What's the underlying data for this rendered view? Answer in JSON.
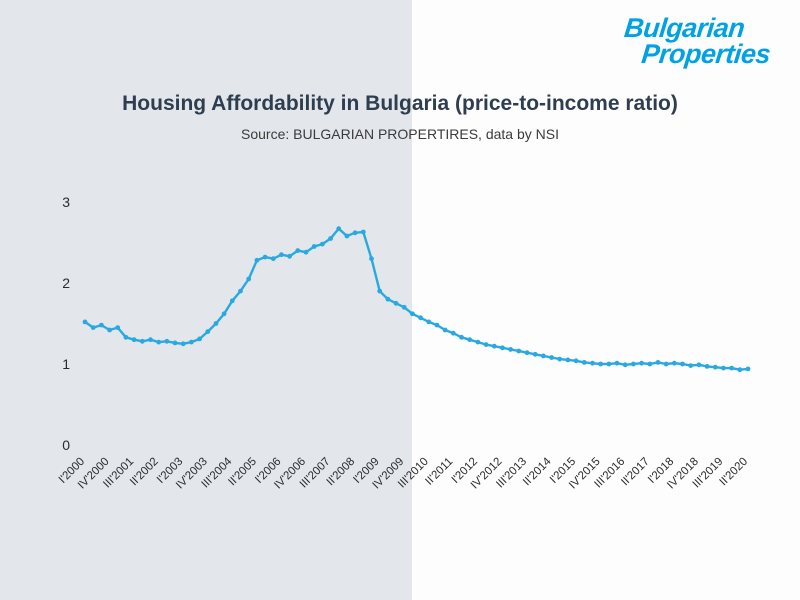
{
  "page": {
    "bg_left_color": "#e3e6ea",
    "bg_right_color": "#fdfdfe",
    "split_x": 412
  },
  "logo": {
    "line1": "Bulgarian",
    "line2": "Properties",
    "color": "#00a2e4"
  },
  "chart_data": {
    "type": "line",
    "title": "Housing Affordability in Bulgaria (price-to-income ratio)",
    "subtitle": "Source: BULGARIAN PROPERTIRES, data by NSI",
    "series": [
      {
        "name": "price-to-income ratio",
        "values": [
          1.52,
          1.45,
          1.48,
          1.42,
          1.45,
          1.33,
          1.3,
          1.28,
          1.3,
          1.27,
          1.28,
          1.26,
          1.25,
          1.27,
          1.31,
          1.4,
          1.5,
          1.62,
          1.78,
          1.9,
          2.05,
          2.28,
          2.32,
          2.3,
          2.35,
          2.33,
          2.4,
          2.38,
          2.45,
          2.48,
          2.55,
          2.67,
          2.58,
          2.62,
          2.63,
          2.3,
          1.9,
          1.8,
          1.75,
          1.7,
          1.62,
          1.57,
          1.52,
          1.48,
          1.42,
          1.38,
          1.33,
          1.3,
          1.27,
          1.24,
          1.22,
          1.2,
          1.18,
          1.16,
          1.14,
          1.12,
          1.1,
          1.08,
          1.06,
          1.05,
          1.04,
          1.02,
          1.01,
          1.0,
          1.0,
          1.01,
          0.99,
          1.0,
          1.01,
          1.0,
          1.02,
          1.0,
          1.01,
          1.0,
          0.98,
          0.99,
          0.97,
          0.96,
          0.95,
          0.95,
          0.93,
          0.94
        ]
      }
    ],
    "x_tick_labels": [
      "I'2000",
      "IV'2000",
      "III'2001",
      "II'2002",
      "I'2003",
      "IV'2003",
      "III'2004",
      "II'2005",
      "I'2006",
      "IV'2006",
      "III'2007",
      "II'2008",
      "I'2009",
      "IV'2009",
      "III'2010",
      "II'2011",
      "I'2012",
      "IV'2012",
      "III'2013",
      "II'2014",
      "I'2015",
      "IV'2015",
      "III'2016",
      "II'2017",
      "I'2018",
      "IV'2018",
      "III'2019",
      "II'2020"
    ],
    "x_tick_step": 3,
    "yticks": [
      0,
      1,
      2,
      3
    ],
    "ylim": [
      0,
      3
    ],
    "line_color": "#2aa9e0",
    "grid": false,
    "legend": "none"
  }
}
